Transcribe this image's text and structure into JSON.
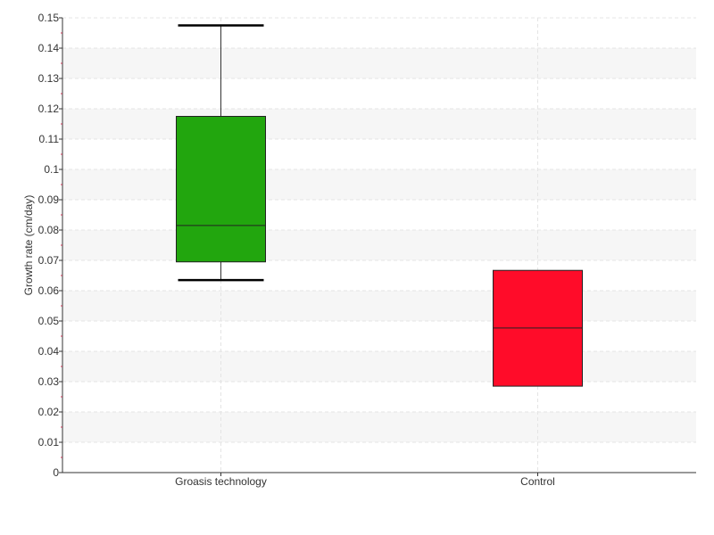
{
  "chart_data": {
    "type": "box",
    "title": "",
    "xlabel": "",
    "ylabel": "Growth rate (cm/day)",
    "ylim": [
      0,
      0.15
    ],
    "y_ticks": [
      "0",
      "0.01",
      "0.02",
      "0.03",
      "0.04",
      "0.05",
      "0.06",
      "0.07",
      "0.08",
      "0.09",
      "0.1",
      "0.11",
      "0.12",
      "0.13",
      "0.14",
      "0.15"
    ],
    "categories": [
      "Groasis technology",
      "Control"
    ],
    "boxes": [
      {
        "category": "Groasis technology",
        "min": 0.0635,
        "q1": 0.0695,
        "median": 0.0815,
        "q3": 0.1175,
        "max": 0.1475,
        "color": "#22a60e",
        "has_whiskers": true
      },
      {
        "category": "Control",
        "min": 0.0285,
        "q1": 0.0285,
        "median": 0.0477,
        "q3": 0.0667,
        "max": 0.0667,
        "color": "#ff0c29",
        "has_whiskers": false
      }
    ],
    "grid": true,
    "band_color": "#f6f6f6",
    "grid_color": "#e4e4e4"
  }
}
